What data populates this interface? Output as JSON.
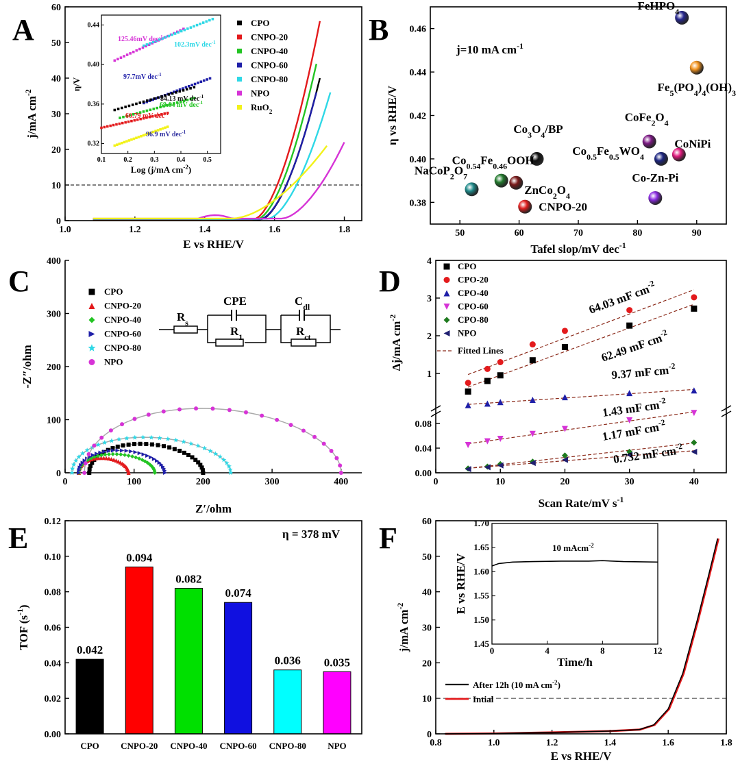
{
  "chart_data": [
    {
      "panel": "A",
      "type": "line",
      "xlabel": "E vs RHE/V",
      "ylabel": "j/mA cm",
      "ylabel_sup": "-2",
      "xlim": [
        1.0,
        1.85
      ],
      "ylim": [
        0,
        60
      ],
      "xticks": [
        1.0,
        1.2,
        1.4,
        1.6,
        1.8
      ],
      "yticks": [
        0,
        10,
        20,
        30,
        40,
        50,
        60
      ],
      "reference_line": 10,
      "series": [
        {
          "name": "CPO",
          "color": "#000000",
          "onset": 1.56,
          "end": [
            1.73,
            40
          ]
        },
        {
          "name": "CNPO-20",
          "color": "#e31a1c",
          "onset": 1.54,
          "end": [
            1.73,
            56
          ]
        },
        {
          "name": "CNPO-40",
          "color": "#22c422",
          "onset": 1.55,
          "end": [
            1.72,
            44
          ]
        },
        {
          "name": "CNPO-60",
          "color": "#1f1fa8",
          "onset": 1.56,
          "end": [
            1.72,
            36
          ]
        },
        {
          "name": "CNPO-80",
          "color": "#2ed8e6",
          "onset": 1.58,
          "end": [
            1.76,
            36
          ]
        },
        {
          "name": "NPO",
          "color": "#d633d6",
          "onset": 1.62,
          "end": [
            1.8,
            22
          ]
        },
        {
          "name": "RuO",
          "sub": "2",
          "color": "#f2f21a",
          "onset": 1.48,
          "end": [
            1.75,
            21
          ]
        }
      ],
      "inset": {
        "xlabel": "Log (j/mA cm",
        "xlabel_sup": "-2",
        "xlabel_end": ")",
        "ylabel": "η/V",
        "xlim": [
          0.1,
          0.55
        ],
        "ylim": [
          0.31,
          0.45
        ],
        "xticks": [
          0.1,
          0.2,
          0.3,
          0.4,
          0.5
        ],
        "yticks": [
          0.32,
          0.36,
          0.4,
          0.44
        ],
        "lines": [
          {
            "label": "125.46mV dec",
            "color": "#d633d6",
            "x": [
              0.15,
              0.41
            ],
            "y": [
              0.404,
              0.436
            ]
          },
          {
            "label": "102.3mV dec",
            "color": "#2ed8e6",
            "x": [
              0.26,
              0.52
            ],
            "y": [
              0.419,
              0.446
            ]
          },
          {
            "label": "97.7mV dec",
            "color": "#1f1fa8",
            "x": [
              0.26,
              0.51
            ],
            "y": [
              0.361,
              0.386
            ]
          },
          {
            "label": "84.13 mV dec",
            "color": "#000000",
            "x": [
              0.15,
              0.45
            ],
            "y": [
              0.354,
              0.377
            ]
          },
          {
            "label": "69.64 mV dec",
            "color": "#22c422",
            "x": [
              0.17,
              0.45
            ],
            "y": [
              0.346,
              0.366
            ]
          },
          {
            "label": "60.79 mV dec",
            "color": "#e31a1c",
            "x": [
              0.1,
              0.35
            ],
            "y": [
              0.336,
              0.351
            ]
          },
          {
            "label": "96.9 mV dec",
            "color": "#f2f21a",
            "x": [
              0.15,
              0.35
            ],
            "y": [
              0.318,
              0.337
            ]
          }
        ]
      }
    },
    {
      "panel": "B",
      "type": "scatter",
      "xlabel": "Tafel slop/mV dec",
      "xlabel_sup": "-1",
      "ylabel": "η vs RHE/V",
      "annotation": "j=10 mA cm",
      "annotation_sup": "-1",
      "xlim": [
        45,
        95
      ],
      "ylim": [
        0.37,
        0.47
      ],
      "xticks": [
        50,
        60,
        70,
        80,
        90
      ],
      "yticks": [
        0.38,
        0.4,
        0.42,
        0.44,
        0.46
      ],
      "points": [
        {
          "label": "FeHPO",
          "sub": "4",
          "x": 87.5,
          "y": 0.465,
          "color": "#26278f"
        },
        {
          "label": "Fe5(PO4)4(OH)3",
          "x": 90,
          "y": 0.442,
          "color": "#f39420"
        },
        {
          "label": "Co3O4/BP",
          "x": 63,
          "y": 0.4,
          "color": "#111111"
        },
        {
          "label": "CoFe2O4",
          "x": 82,
          "y": 0.408,
          "color": "#7d1a85"
        },
        {
          "label": "CoNiPi",
          "x": 87,
          "y": 0.402,
          "color": "#e0197d"
        },
        {
          "label": "Co0.5Fe0.5WO4",
          "x": 84,
          "y": 0.4,
          "color": "#1c2580"
        },
        {
          "label": "Co0.54Fe0.46OOH",
          "x": 57,
          "y": 0.39,
          "color": "#237a2e"
        },
        {
          "label": "NaCoP2O7",
          "x": 52,
          "y": 0.386,
          "color": "#1f8a8a"
        },
        {
          "label": "ZnCo2O4",
          "x": 59.5,
          "y": 0.389,
          "color": "#7a1a1a"
        },
        {
          "label": "CNPO-20",
          "x": 61,
          "y": 0.378,
          "color": "#e01f1f"
        },
        {
          "label": "Co-Zn-Pi",
          "x": 83,
          "y": 0.382,
          "color": "#8b2be2"
        }
      ]
    },
    {
      "panel": "C",
      "type": "scatter",
      "xlabel": "Z′/ohm",
      "ylabel": "-Z″/ohm",
      "xlim": [
        0,
        430
      ],
      "ylim": [
        0,
        400
      ],
      "xticks": [
        0,
        100,
        200,
        300,
        400
      ],
      "yticks": [
        0,
        100,
        200,
        300,
        400
      ],
      "circuit_labels": {
        "rs": "R",
        "rs_sub": "s",
        "cpe": "CPE",
        "r1": "R",
        "r1_sub": "1",
        "cdl": "C",
        "cdl_sub": "dl",
        "rct": "R",
        "rct_sub": "ct"
      },
      "series": [
        {
          "name": "CPO",
          "color": "#000000",
          "marker": "square",
          "x0": 35,
          "x1": 200,
          "peak": 62
        },
        {
          "name": "CNPO-20",
          "color": "#e31a1c",
          "marker": "triangle",
          "x0": 20,
          "x1": 92,
          "peak": 32
        },
        {
          "name": "CNPO-40",
          "color": "#22c422",
          "marker": "diamond",
          "x0": 20,
          "x1": 130,
          "peak": 40
        },
        {
          "name": "CNPO-60",
          "color": "#1f1fa8",
          "marker": "triangle-right",
          "x0": 20,
          "x1": 145,
          "peak": 48
        },
        {
          "name": "CNPO-80",
          "color": "#2ed8e6",
          "marker": "star",
          "x0": 10,
          "x1": 240,
          "peak": 76
        },
        {
          "name": "NPO",
          "color": "#d633d6",
          "marker": "circle",
          "x0": 28,
          "x1": 400,
          "peak": 138
        }
      ]
    },
    {
      "panel": "D",
      "type": "scatter",
      "xlabel": "Scan Rate/mV s",
      "xlabel_sup": "-1",
      "ylabel": "Δj/mA cm",
      "ylabel_sup": "-2",
      "xlim": [
        0,
        45
      ],
      "xticks": [
        0,
        10,
        20,
        30,
        40
      ],
      "upper_ylim": [
        0,
        4
      ],
      "upper_yticks": [
        1,
        2,
        3,
        4
      ],
      "lower_ylim": [
        0,
        0.1
      ],
      "lower_yticks": [
        0.0,
        0.04,
        0.08
      ],
      "x": [
        5,
        8,
        10,
        15,
        20,
        30,
        40
      ],
      "legend_fit": "Fitted Lines",
      "series": [
        {
          "name": "CPO",
          "color": "#000000",
          "marker": "square",
          "axis": "upper",
          "values": [
            0.52,
            0.8,
            0.95,
            1.35,
            1.7,
            2.27,
            2.72
          ],
          "annotation": "62.49 mF cm",
          "annotation_sup": "-2"
        },
        {
          "name": "CPO-20",
          "color": "#e31a1c",
          "marker": "circle",
          "axis": "upper",
          "values": [
            0.75,
            1.12,
            1.3,
            1.77,
            2.13,
            2.68,
            3.02
          ],
          "annotation": "64.03 mF cm",
          "annotation_sup": "-2"
        },
        {
          "name": "CPO-40",
          "color": "#1f1fa8",
          "marker": "triangle",
          "axis": "upper",
          "values": [
            0.16,
            0.2,
            0.24,
            0.3,
            0.37,
            0.48,
            0.55
          ],
          "annotation": "9.37 mF cm",
          "annotation_sup": "-2"
        },
        {
          "name": "CPO-60",
          "color": "#d633d6",
          "marker": "triangle-down",
          "axis": "lower",
          "values": [
            0.045,
            0.051,
            0.055,
            0.063,
            0.071,
            0.085,
            0.097
          ],
          "annotation": "1.43 mF cm",
          "annotation_sup": "-2"
        },
        {
          "name": "CPO-80",
          "color": "#1e7a1e",
          "marker": "diamond",
          "axis": "lower",
          "values": [
            0.007,
            0.01,
            0.014,
            0.018,
            0.028,
            0.034,
            0.049
          ],
          "annotation": "1.17 mF cm",
          "annotation_sup": "-2"
        },
        {
          "name": "NPO",
          "color": "#1f1f70",
          "marker": "triangle-left",
          "axis": "lower",
          "values": [
            0.006,
            0.009,
            0.012,
            0.016,
            0.021,
            0.029,
            0.034
          ],
          "annotation": "0.732 mF cm",
          "annotation_sup": "-2"
        }
      ]
    },
    {
      "panel": "E",
      "type": "bar",
      "ylabel": "TOF (s",
      "ylabel_sup": "-1",
      "ylabel_end": ")",
      "annotation": "η = 378 mV",
      "ylim": [
        0,
        0.12
      ],
      "yticks": [
        0.0,
        0.02,
        0.04,
        0.06,
        0.08,
        0.1,
        0.12
      ],
      "categories": [
        "CPO",
        "CNPO-20",
        "CNPO-40",
        "CNPO-60",
        "CNPO-80",
        "NPO"
      ],
      "values": [
        0.042,
        0.094,
        0.082,
        0.074,
        0.036,
        0.035
      ],
      "value_labels": [
        "0.042",
        "0.094",
        "0.082",
        "0.074",
        "0.036",
        "0.035"
      ],
      "colors": [
        "#000000",
        "#ff0000",
        "#00e000",
        "#1010e0",
        "#00ffff",
        "#ff00ff"
      ]
    },
    {
      "panel": "F",
      "type": "line",
      "xlabel": "E vs RHE/V",
      "ylabel": "j/mA cm",
      "ylabel_sup": "-2",
      "xlim": [
        0.8,
        1.8
      ],
      "ylim": [
        0,
        60
      ],
      "xticks": [
        0.8,
        1.0,
        1.2,
        1.4,
        1.6,
        1.8
      ],
      "yticks": [
        0,
        10,
        20,
        30,
        40,
        50,
        60
      ],
      "reference_line": 10,
      "series": [
        {
          "name": "After 12h (10 mA cm",
          "name_sup": "-2",
          "name_end": ")",
          "color": "#000000"
        },
        {
          "name": "Intial",
          "color": "#e31a1c"
        }
      ],
      "curve": {
        "x": [
          0.83,
          1.0,
          1.2,
          1.4,
          1.5,
          1.55,
          1.6,
          1.65,
          1.7,
          1.74,
          1.77
        ],
        "y": [
          0.0,
          0.1,
          0.4,
          0.8,
          1.2,
          2.5,
          7.0,
          17.0,
          32.0,
          45.0,
          55.0
        ]
      },
      "inset": {
        "xlabel": "Time/h",
        "ylabel": "E vs RHE/V",
        "annotation": "10 mAcm",
        "annotation_sup": "-2",
        "xlim": [
          0,
          12
        ],
        "ylim": [
          1.45,
          1.7
        ],
        "xticks": [
          0,
          4,
          8,
          12
        ],
        "yticks": [
          1.45,
          1.5,
          1.55,
          1.6,
          1.65,
          1.7
        ],
        "trace": {
          "x": [
            0,
            0.5,
            1.5,
            3,
            5,
            7,
            8,
            9.5,
            12
          ],
          "y": [
            1.612,
            1.617,
            1.62,
            1.621,
            1.622,
            1.622,
            1.623,
            1.621,
            1.62
          ]
        }
      }
    }
  ],
  "panel_labels": [
    "A",
    "B",
    "C",
    "D",
    "E",
    "F"
  ]
}
